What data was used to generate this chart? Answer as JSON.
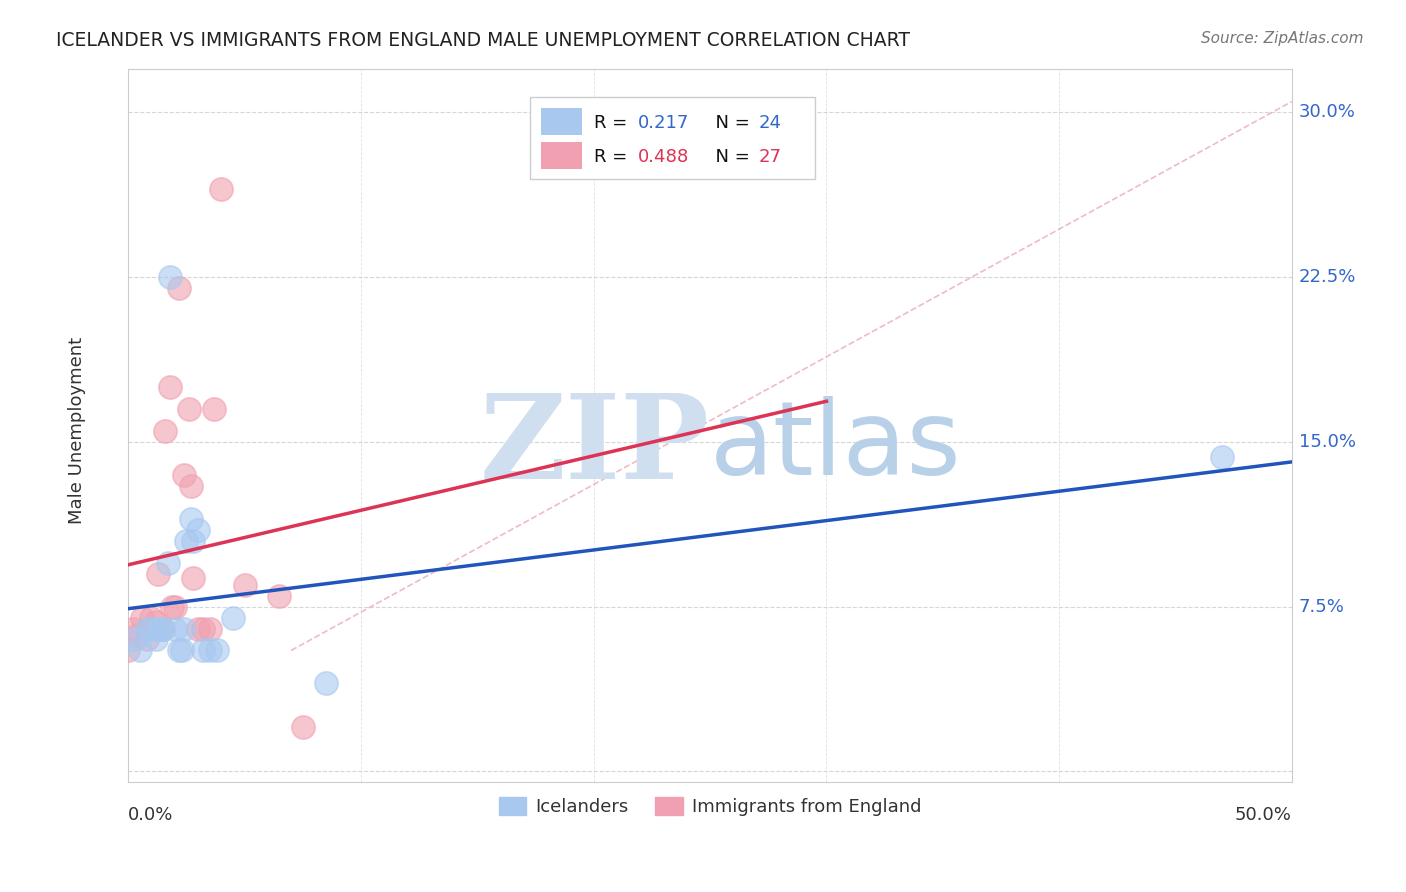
{
  "title": "ICELANDER VS IMMIGRANTS FROM ENGLAND MALE UNEMPLOYMENT CORRELATION CHART",
  "source": "Source: ZipAtlas.com",
  "ylabel": "Male Unemployment",
  "y_ticks": [
    0.0,
    0.075,
    0.15,
    0.225,
    0.3
  ],
  "y_tick_labels": [
    "",
    "7.5%",
    "15.0%",
    "22.5%",
    "30.0%"
  ],
  "xlim": [
    0.0,
    0.5
  ],
  "ylim": [
    -0.005,
    0.32
  ],
  "icelanders": {
    "color": "#a8c8f0",
    "line_color": "#2255bb",
    "x": [
      0.003,
      0.005,
      0.008,
      0.01,
      0.012,
      0.013,
      0.014,
      0.015,
      0.017,
      0.018,
      0.02,
      0.022,
      0.023,
      0.024,
      0.025,
      0.027,
      0.028,
      0.03,
      0.032,
      0.035,
      0.038,
      0.045,
      0.085,
      0.47
    ],
    "y": [
      0.06,
      0.055,
      0.065,
      0.065,
      0.06,
      0.065,
      0.065,
      0.065,
      0.095,
      0.225,
      0.065,
      0.055,
      0.055,
      0.065,
      0.105,
      0.115,
      0.105,
      0.11,
      0.055,
      0.055,
      0.055,
      0.07,
      0.04,
      0.143
    ]
  },
  "england": {
    "color": "#f0a0b0",
    "line_color": "#dd3355",
    "x": [
      0.0,
      0.002,
      0.004,
      0.006,
      0.008,
      0.009,
      0.01,
      0.012,
      0.013,
      0.015,
      0.016,
      0.018,
      0.019,
      0.02,
      0.022,
      0.024,
      0.026,
      0.027,
      0.028,
      0.03,
      0.032,
      0.035,
      0.037,
      0.04,
      0.05,
      0.065,
      0.075
    ],
    "y": [
      0.055,
      0.065,
      0.062,
      0.07,
      0.06,
      0.065,
      0.07,
      0.068,
      0.09,
      0.065,
      0.155,
      0.175,
      0.075,
      0.075,
      0.22,
      0.135,
      0.165,
      0.13,
      0.088,
      0.065,
      0.065,
      0.065,
      0.165,
      0.265,
      0.085,
      0.08,
      0.02
    ]
  },
  "bg_color": "#ffffff",
  "grid_color": "#cccccc",
  "watermark_zip": "ZIP",
  "watermark_atlas": "atlas",
  "watermark_color": "#d0dff0"
}
